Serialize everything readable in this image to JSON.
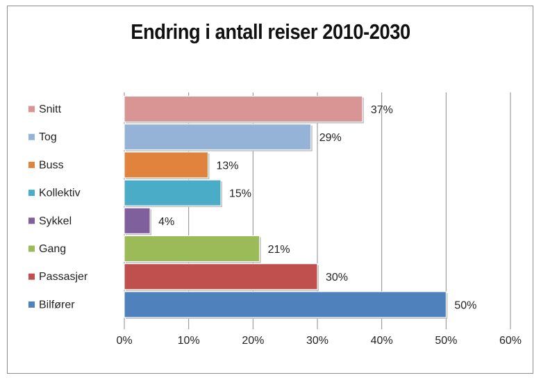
{
  "chart_data": {
    "type": "bar",
    "orientation": "horizontal",
    "title": "Endring i antall reiser 2010-2030",
    "categories": [
      "Snitt",
      "Tog",
      "Buss",
      "Kollektiv",
      "Sykkel",
      "Gang",
      "Passasjer",
      "Bilfører"
    ],
    "values": [
      37,
      29,
      13,
      15,
      4,
      21,
      30,
      50
    ],
    "data_labels": [
      "37%",
      "29%",
      "13%",
      "15%",
      "4%",
      "21%",
      "30%",
      "50%"
    ],
    "colors": [
      "#d99594",
      "#95b3d7",
      "#e0843d",
      "#4aacc6",
      "#7f5f9c",
      "#9bbb59",
      "#c0504d",
      "#4f81bd"
    ],
    "x_ticks": [
      "0%",
      "10%",
      "20%",
      "30%",
      "40%",
      "50%",
      "60%"
    ],
    "xlim": [
      0,
      60
    ],
    "grid": true,
    "legend_position": "left"
  }
}
